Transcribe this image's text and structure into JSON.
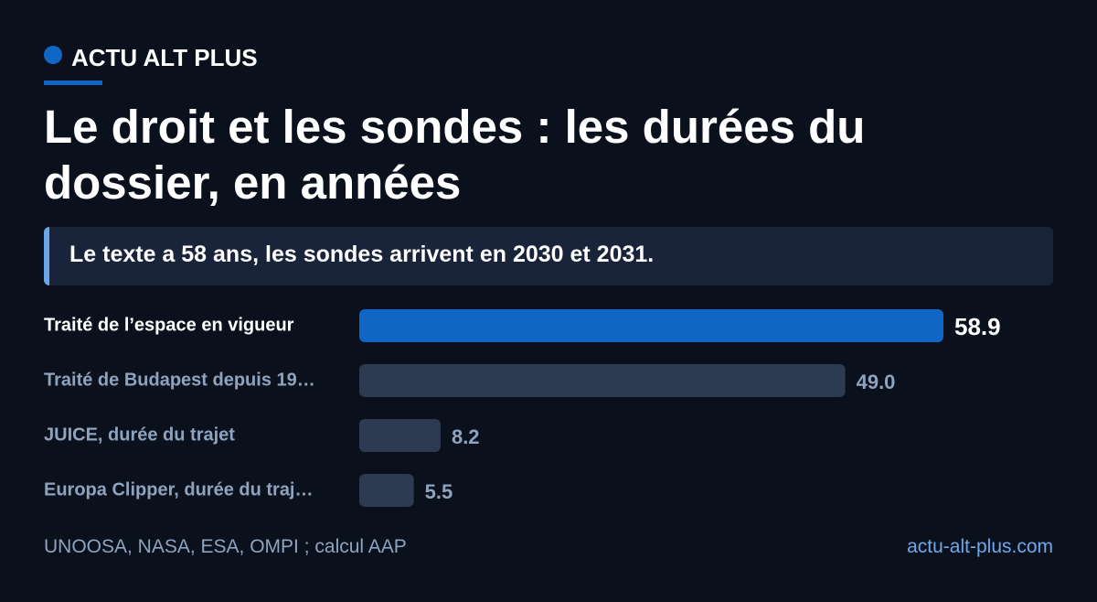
{
  "brand": "ACTU ALT PLUS",
  "chart_data": {
    "type": "bar",
    "title": "Le droit et les sondes : les durées du dossier, en années",
    "subtitle": "Le texte a 58 ans, les sondes arrivent en 2030 et 2031.",
    "categories": [
      "Traité de l’espace en vigueur",
      "Traité de Budapest depuis 19…",
      "JUICE, durée du trajet",
      "Europa Clipper, durée du traj…"
    ],
    "values": [
      58.9,
      49.0,
      8.2,
      5.5
    ],
    "value_labels": [
      "58.9",
      "49.0",
      "8.2",
      "5.5"
    ],
    "colors": [
      "#0f66c4",
      "#2c3a52",
      "#2c3a52",
      "#2c3a52"
    ]
  },
  "footer": {
    "source": "UNOOSA, NASA, ESA, OMPI ; calcul AAP",
    "site": "actu-alt-plus.com"
  }
}
